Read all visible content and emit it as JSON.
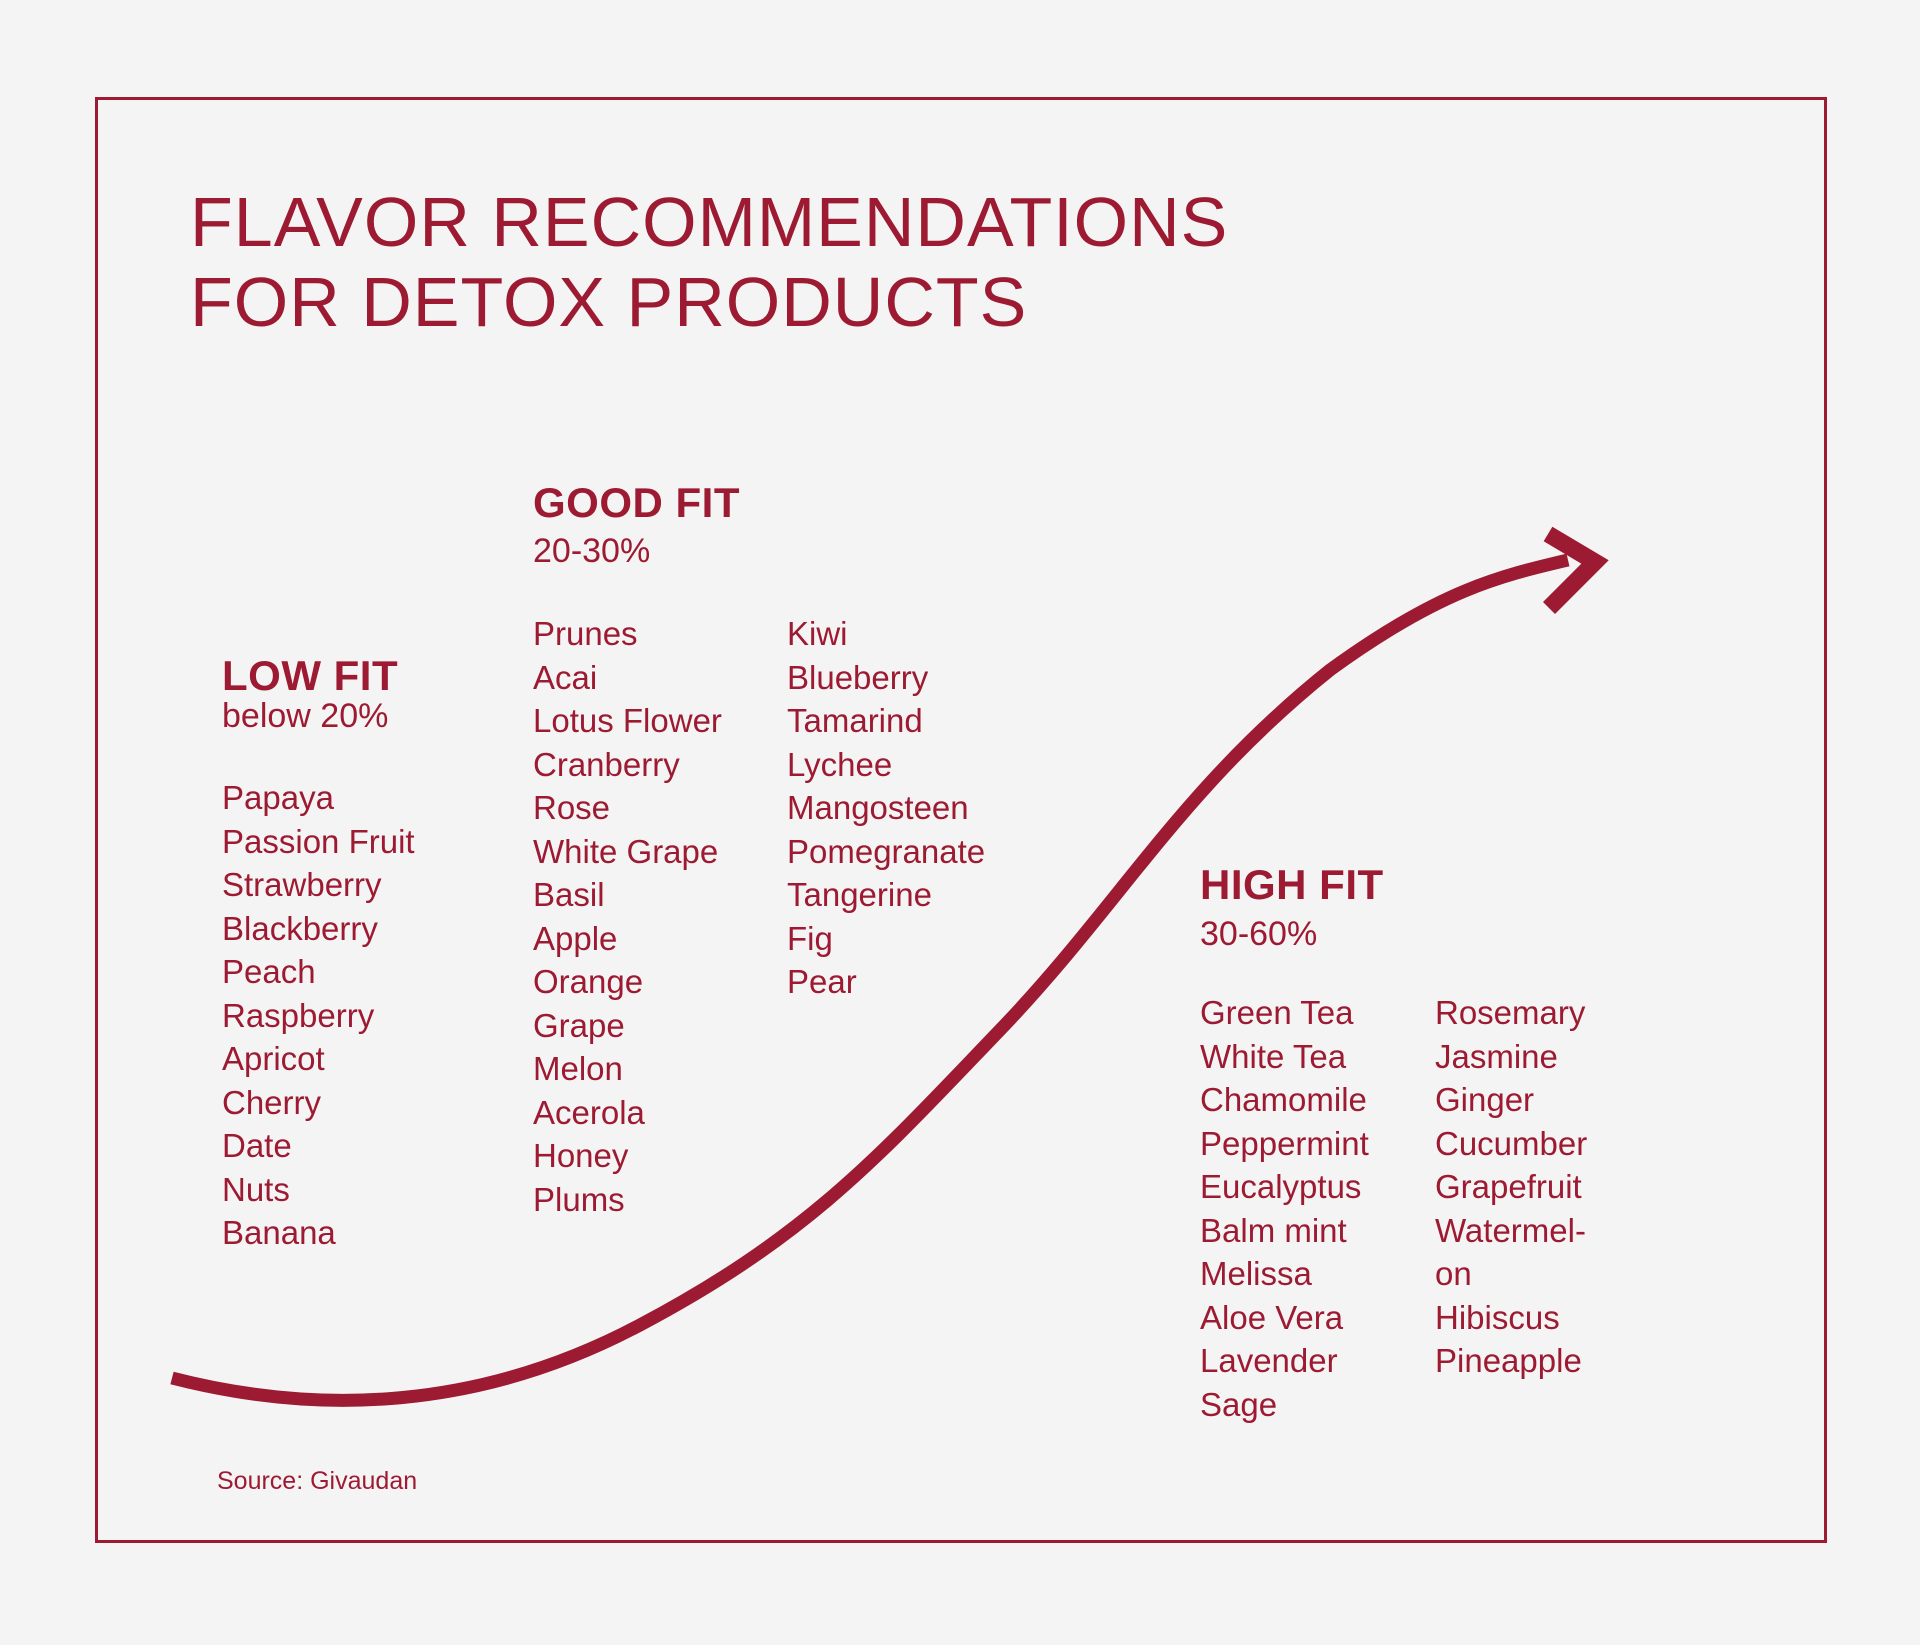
{
  "page": {
    "title_line1": "FLAVOR RECOMMENDATIONS",
    "title_line2": "FOR DETOX PRODUCTS",
    "source": "Source: Givaudan"
  },
  "colors": {
    "accent": "#9d1b32",
    "background": "#f5f4f4"
  },
  "sections": {
    "low": {
      "label": "LOW FIT",
      "range": "below 20%",
      "col1": [
        "Papaya",
        "Passion Fruit",
        "Strawberry",
        "Blackberry",
        "Peach",
        "Raspberry",
        "Apricot",
        "Cherry",
        "Date",
        "Nuts",
        "Banana"
      ]
    },
    "good": {
      "label": "GOOD FIT",
      "range": "20-30%",
      "col1": [
        "Prunes",
        "Acai",
        "Lotus Flower",
        "Cranberry",
        "Rose",
        "White Grape",
        "Basil",
        "Apple",
        "Orange",
        "Grape",
        "Melon",
        "Acerola",
        "Honey",
        "Plums"
      ],
      "col2": [
        "Kiwi",
        "Blueberry",
        "Tamarind",
        "Lychee",
        "Mangosteen",
        "Pomegranate",
        "Tangerine",
        "Fig",
        "Pear"
      ]
    },
    "high": {
      "label": "HIGH FIT",
      "range": "30-60%",
      "col1": [
        "Green Tea",
        "White Tea",
        "Chamomile",
        "Peppermint",
        "Eucalyptus",
        "Balm mint",
        "Melissa",
        "Aloe Vera",
        "Lavender",
        "Sage"
      ],
      "col2": [
        "Rosemary",
        "Jasmine",
        "Ginger",
        "Cucumber",
        "Grapefruit",
        "Watermel-",
        "on",
        "Hibiscus",
        "Pineapple"
      ]
    }
  },
  "arrow": {
    "meaning": "ascending s-curve indicating increasing fit from low to high"
  }
}
